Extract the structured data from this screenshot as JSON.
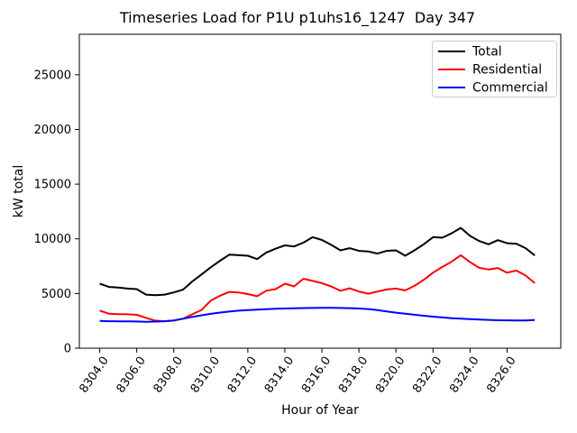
{
  "chart_data": {
    "type": "line",
    "title": "Timeseries Load for P1U p1uhs16_1247  Day 347",
    "xlabel": "Hour of Year",
    "ylabel": "kW total",
    "grid": false,
    "xlim": [
      8302.9,
      8328.9
    ],
    "ylim": [
      0,
      28700
    ],
    "xticks": [
      8304,
      8306,
      8308,
      8310,
      8312,
      8314,
      8316,
      8318,
      8320,
      8322,
      8324,
      8326
    ],
    "xtick_labels": [
      "8304.0",
      "8306.0",
      "8308.0",
      "8310.0",
      "8312.0",
      "8314.0",
      "8316.0",
      "8318.0",
      "8320.0",
      "8322.0",
      "8324.0",
      "8326.0"
    ],
    "yticks": [
      0,
      5000,
      10000,
      15000,
      20000,
      25000
    ],
    "ytick_labels": [
      "0",
      "5000",
      "10000",
      "15000",
      "20000",
      "25000"
    ],
    "x_tick_rotation_deg": 55,
    "x": [
      8304.0,
      8304.5,
      8305.0,
      8305.5,
      8306.0,
      8306.5,
      8307.0,
      8307.5,
      8308.0,
      8308.5,
      8309.0,
      8309.5,
      8310.0,
      8310.5,
      8311.0,
      8311.5,
      8312.0,
      8312.5,
      8313.0,
      8313.5,
      8314.0,
      8314.5,
      8315.0,
      8315.5,
      8316.0,
      8316.5,
      8317.0,
      8317.5,
      8318.0,
      8318.5,
      8319.0,
      8319.5,
      8320.0,
      8320.5,
      8321.0,
      8321.5,
      8322.0,
      8322.5,
      8323.0,
      8323.5,
      8324.0,
      8324.5,
      8325.0,
      8325.5,
      8326.0,
      8326.5,
      8327.0,
      8327.5
    ],
    "series": [
      {
        "name": "Total",
        "color": "#000000",
        "values": [
          5900,
          5600,
          5550,
          5450,
          5400,
          4900,
          4850,
          4900,
          5100,
          5350,
          6100,
          6750,
          7400,
          8000,
          8550,
          8500,
          8450,
          8150,
          8750,
          9100,
          9400,
          9300,
          9650,
          10150,
          9900,
          9450,
          8950,
          9150,
          8900,
          8850,
          8650,
          8900,
          8950,
          8450,
          8950,
          9500,
          10150,
          10100,
          10500,
          11000,
          10270,
          9800,
          9500,
          9880,
          9600,
          9550,
          9150,
          8480
        ]
      },
      {
        "name": "Residential",
        "color": "#ff0000",
        "values": [
          3440,
          3150,
          3120,
          3100,
          3050,
          2780,
          2520,
          2470,
          2520,
          2700,
          3100,
          3500,
          4350,
          4800,
          5150,
          5100,
          4950,
          4750,
          5250,
          5400,
          5900,
          5650,
          6350,
          6150,
          5950,
          5650,
          5250,
          5480,
          5180,
          4980,
          5180,
          5370,
          5450,
          5290,
          5700,
          6250,
          6900,
          7430,
          7900,
          8500,
          7870,
          7350,
          7200,
          7330,
          6900,
          7100,
          6650,
          5950
        ]
      },
      {
        "name": "Commercial",
        "color": "#0000ff",
        "values": [
          2500,
          2470,
          2460,
          2450,
          2440,
          2420,
          2430,
          2470,
          2540,
          2700,
          2860,
          3010,
          3140,
          3260,
          3350,
          3430,
          3480,
          3530,
          3570,
          3600,
          3630,
          3650,
          3670,
          3680,
          3690,
          3690,
          3680,
          3660,
          3630,
          3580,
          3480,
          3360,
          3250,
          3160,
          3060,
          2970,
          2890,
          2810,
          2750,
          2700,
          2660,
          2620,
          2590,
          2560,
          2545,
          2540,
          2540,
          2580
        ]
      }
    ],
    "legend": {
      "position": "upper right",
      "entries": [
        "Total",
        "Residential",
        "Commercial"
      ]
    }
  },
  "colors": {
    "background": "#ffffff",
    "axis": "#000000",
    "legend_border": "#cccccc"
  }
}
